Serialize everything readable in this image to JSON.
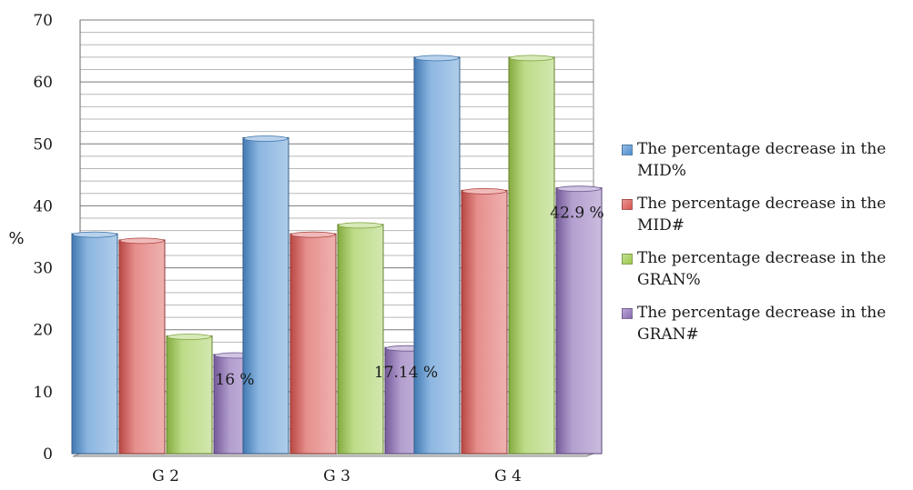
{
  "chart_data": {
    "type": "bar",
    "categories": [
      "G 2",
      "G 3",
      "G 4"
    ],
    "series": [
      {
        "name": "The percentage decrease in the MID%",
        "color": "#4e8fd1",
        "values": [
          35.5,
          51,
          64
        ]
      },
      {
        "name": "The percentage decrease in the MID#",
        "color": "#d9534f",
        "values": [
          34.5,
          35.5,
          42.5
        ]
      },
      {
        "name": "The percentage decrease in the GRAN%",
        "color": "#9bc94a",
        "values": [
          19,
          37,
          64
        ]
      },
      {
        "name": "The percentage decrease in the GRAN#",
        "color": "#8a6bb5",
        "values": [
          16,
          17.14,
          42.9
        ]
      }
    ],
    "data_labels": [
      {
        "series": 3,
        "category": 0,
        "text": "16 %"
      },
      {
        "series": 3,
        "category": 1,
        "text": "17.14 %"
      },
      {
        "series": 3,
        "category": 2,
        "text": "42.9 %"
      }
    ],
    "ylabel": "%",
    "xlabel": "",
    "title": "",
    "ylim": [
      0,
      70
    ],
    "yticks": [
      0,
      10,
      20,
      30,
      40,
      50,
      60,
      70
    ],
    "grid": true,
    "legend_position": "right"
  }
}
